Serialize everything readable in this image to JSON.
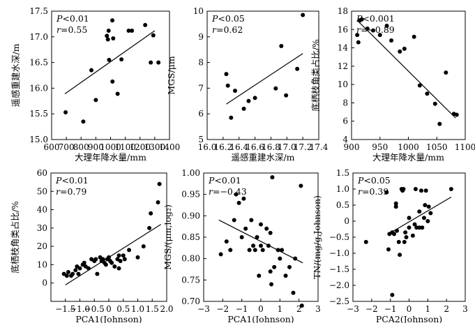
{
  "chart_data": [
    {
      "type": "scatter",
      "panel": "top-left",
      "xlabel": "大理年降水量/mm",
      "ylabel": "遥感重建水深/m",
      "xlim": [
        600,
        1400
      ],
      "ylim": [
        15.0,
        17.5
      ],
      "xticks": [
        600,
        700,
        800,
        900,
        1000,
        1100,
        1200,
        1300,
        1400
      ],
      "xtick_labels": [
        "600",
        "700",
        "800",
        "900",
        "1000",
        "1100",
        "1200",
        "1300",
        "1400"
      ],
      "yticks": [
        15.0,
        15.5,
        16.0,
        16.5,
        17.0,
        17.5
      ],
      "ytick_labels": [
        "15.0",
        "15.5",
        "16.0",
        "16.5",
        "17.0",
        "17.5"
      ],
      "stats": [
        {
          "var": "P",
          "text": "<0.01"
        },
        {
          "var": "r",
          "text": "=0.55"
        }
      ],
      "points": [
        [
          695,
          15.53
        ],
        [
          815,
          15.35
        ],
        [
          870,
          16.35
        ],
        [
          900,
          15.77
        ],
        [
          975,
          17.02
        ],
        [
          982,
          16.95
        ],
        [
          987,
          17.12
        ],
        [
          990,
          16.55
        ],
        [
          1012,
          17.32
        ],
        [
          1013,
          16.13
        ],
        [
          1018,
          16.97
        ],
        [
          1048,
          15.89
        ],
        [
          1074,
          16.56
        ],
        [
          1123,
          17.12
        ],
        [
          1145,
          17.12
        ],
        [
          1235,
          17.23
        ],
        [
          1273,
          16.5
        ],
        [
          1290,
          17.03
        ],
        [
          1325,
          16.5
        ]
      ],
      "trendline": [
        [
          690,
          15.89
        ],
        [
          1300,
          17.12
        ]
      ]
    },
    {
      "type": "scatter",
      "panel": "top-middle",
      "xlabel": "遥感重建水深/m",
      "ylabel": "MGS/μm",
      "xlim": [
        16.0,
        17.4
      ],
      "ylim": [
        5,
        10
      ],
      "xticks": [
        16.0,
        16.2,
        16.4,
        16.6,
        16.8,
        17.0,
        17.2,
        17.4
      ],
      "xtick_labels": [
        "16.0",
        "16.2",
        "16.4",
        "16.6",
        "16.8",
        "17.0",
        "17.2",
        "17.4"
      ],
      "yticks": [
        5,
        6,
        7,
        8,
        9,
        10
      ],
      "ytick_labels": [
        "5",
        "6",
        "7",
        "8",
        "9",
        "10"
      ],
      "stats": [
        {
          "var": "P",
          "text": "<0.05"
        },
        {
          "var": "r",
          "text": "=0.62"
        }
      ],
      "points": [
        [
          16.24,
          7.55
        ],
        [
          16.26,
          7.1
        ],
        [
          16.3,
          5.85
        ],
        [
          16.35,
          6.9
        ],
        [
          16.46,
          6.2
        ],
        [
          16.52,
          6.5
        ],
        [
          16.6,
          6.62
        ],
        [
          16.86,
          6.99
        ],
        [
          16.93,
          8.64
        ],
        [
          16.99,
          6.72
        ],
        [
          17.13,
          7.75
        ],
        [
          17.2,
          9.85
        ]
      ],
      "trendline": [
        [
          16.24,
          6.38
        ],
        [
          17.2,
          8.35
        ]
      ]
    },
    {
      "type": "scatter",
      "panel": "top-right",
      "xlabel": "大理年降水量/mm",
      "ylabel": "底栖枝角类占比/%",
      "xlim": [
        900,
        1100
      ],
      "ylim": [
        4,
        18
      ],
      "xticks": [
        900,
        950,
        1000,
        1050,
        1100
      ],
      "xtick_labels": [
        "900",
        "950",
        "1000",
        "1050",
        "1100"
      ],
      "yticks": [
        4,
        6,
        8,
        10,
        12,
        14,
        16,
        18
      ],
      "ytick_labels": [
        "4",
        "6",
        "8",
        "10",
        "12",
        "14",
        "16",
        "18"
      ],
      "stats": [
        {
          "var": "P",
          "text": "<0.001"
        },
        {
          "var": "r",
          "text": "=−0.89"
        }
      ],
      "points": [
        [
          910,
          15.4
        ],
        [
          912,
          14.6
        ],
        [
          915,
          17.0
        ],
        [
          918,
          17.1
        ],
        [
          928,
          16.1
        ],
        [
          938,
          15.9
        ],
        [
          950,
          15.4
        ],
        [
          962,
          16.4
        ],
        [
          970,
          14.8
        ],
        [
          985,
          13.6
        ],
        [
          993,
          13.9
        ],
        [
          1010,
          15.2
        ],
        [
          1020,
          9.9
        ],
        [
          1033,
          9.0
        ],
        [
          1047,
          7.9
        ],
        [
          1055,
          5.7
        ],
        [
          1066,
          11.3
        ],
        [
          1080,
          6.8
        ],
        [
          1085,
          6.7
        ]
      ],
      "trendline": [
        [
          910,
          17.0
        ],
        [
          1083,
          6.35
        ]
      ]
    },
    {
      "type": "scatter",
      "panel": "bottom-left",
      "xlabel": "PCA1(Johnson)",
      "ylabel": "底栖枝角类占比/%",
      "xlim": [
        -2.0,
        2.0
      ],
      "ylim": [
        -10,
        60
      ],
      "xticks": [
        -1.5,
        -1.0,
        -0.5,
        0,
        0.5,
        1.0,
        1.5,
        2.0
      ],
      "xtick_labels": [
        "−1.5",
        "−1.0",
        "−0.5",
        "0",
        "0.5",
        "1.0",
        "1.5",
        "2.0"
      ],
      "yticks": [
        0,
        10,
        20,
        30,
        40,
        50,
        60
      ],
      "ytick_labels": [
        "0",
        "10",
        "20",
        "30",
        "40",
        "50",
        "60"
      ],
      "stats": [
        {
          "var": "P",
          "text": "<0.01"
        },
        {
          "var": "r",
          "text": "=0.79"
        }
      ],
      "points": [
        [
          -1.55,
          5
        ],
        [
          -1.45,
          4
        ],
        [
          -1.4,
          6
        ],
        [
          -1.3,
          4
        ],
        [
          -1.25,
          5
        ],
        [
          -1.15,
          7
        ],
        [
          -1.1,
          9
        ],
        [
          -1.05,
          5
        ],
        [
          -1.0,
          8
        ],
        [
          -0.9,
          10
        ],
        [
          -0.85,
          11
        ],
        [
          -0.8,
          9
        ],
        [
          -0.7,
          8
        ],
        [
          -0.6,
          13
        ],
        [
          -0.5,
          12
        ],
        [
          -0.45,
          13
        ],
        [
          -0.4,
          5
        ],
        [
          -0.3,
          14
        ],
        [
          -0.25,
          12
        ],
        [
          -0.2,
          13
        ],
        [
          -0.15,
          11
        ],
        [
          -0.1,
          10
        ],
        [
          -0.05,
          13
        ],
        [
          0.0,
          14
        ],
        [
          0.05,
          12
        ],
        [
          0.1,
          11
        ],
        [
          0.2,
          9
        ],
        [
          0.3,
          13
        ],
        [
          0.35,
          8
        ],
        [
          0.35,
          15
        ],
        [
          0.4,
          12
        ],
        [
          0.5,
          15
        ],
        [
          0.55,
          13
        ],
        [
          0.7,
          18
        ],
        [
          1.0,
          14
        ],
        [
          1.2,
          20
        ],
        [
          1.4,
          30
        ],
        [
          1.45,
          38
        ],
        [
          1.7,
          44
        ],
        [
          1.75,
          54
        ]
      ],
      "trendline": [
        [
          -1.5,
          -1.0
        ],
        [
          1.8,
          32.0
        ]
      ]
    },
    {
      "type": "scatter",
      "panel": "bottom-middle",
      "xlabel": "PCA1(Johnson)",
      "ylabel": "MGS/(μm,log₂)",
      "xlim": [
        -3,
        3
      ],
      "ylim": [
        0.7,
        1.0
      ],
      "xticks": [
        -3,
        -2,
        -1,
        0,
        1,
        2,
        3
      ],
      "xtick_labels": [
        "−3",
        "−2",
        "−1",
        "0",
        "1",
        "2",
        "3"
      ],
      "yticks": [
        0.7,
        0.75,
        0.8,
        0.85,
        0.9,
        0.95,
        1.0
      ],
      "ytick_labels": [
        "0.70",
        "0.75",
        "0.80",
        "0.85",
        "0.90",
        "0.95",
        "1.00"
      ],
      "stats": [
        {
          "var": "P",
          "text": "<0.01"
        },
        {
          "var": "r",
          "text": "=−0.43"
        }
      ],
      "points": [
        [
          -2.1,
          0.81
        ],
        [
          -1.8,
          0.84
        ],
        [
          -1.6,
          0.82
        ],
        [
          -1.4,
          0.89
        ],
        [
          -1.3,
          0.95
        ],
        [
          -1.15,
          0.93
        ],
        [
          -1.0,
          0.85
        ],
        [
          -0.9,
          0.94
        ],
        [
          -0.8,
          0.87
        ],
        [
          -0.6,
          0.82
        ],
        [
          -0.5,
          0.89
        ],
        [
          -0.4,
          0.83
        ],
        [
          -0.3,
          0.82
        ],
        [
          -0.2,
          0.85
        ],
        [
          -0.1,
          0.76
        ],
        [
          0.0,
          0.88
        ],
        [
          0.0,
          0.83
        ],
        [
          0.1,
          0.82
        ],
        [
          0.3,
          0.87
        ],
        [
          0.4,
          0.83
        ],
        [
          0.5,
          0.77
        ],
        [
          0.5,
          0.86
        ],
        [
          0.55,
          0.74
        ],
        [
          0.6,
          0.99
        ],
        [
          0.7,
          0.78
        ],
        [
          0.9,
          0.82
        ],
        [
          1.0,
          0.8
        ],
        [
          1.1,
          0.82
        ],
        [
          1.3,
          0.76
        ],
        [
          1.5,
          0.78
        ],
        [
          1.7,
          0.72
        ],
        [
          1.8,
          0.8
        ],
        [
          2.1,
          0.97
        ],
        [
          2.15,
          0.69
        ]
      ],
      "trendline": [
        [
          -2.2,
          0.89
        ],
        [
          2.2,
          0.79
        ]
      ]
    },
    {
      "type": "scatter",
      "panel": "bottom-right",
      "xlabel": "PCA2(Johnson)",
      "ylabel": "TN/(mg/g,Johnson)",
      "xlim": [
        -3,
        3
      ],
      "ylim": [
        -2.5,
        1.5
      ],
      "xticks": [
        -3,
        -2,
        -1,
        0,
        1,
        2,
        3
      ],
      "xtick_labels": [
        "−3",
        "−2",
        "−1",
        "0",
        "1",
        "2",
        "3"
      ],
      "yticks": [
        -2.5,
        -2.0,
        -1.5,
        -1.0,
        -0.5,
        0,
        0.5,
        1.0,
        1.5
      ],
      "ytick_labels": [
        "−2.5",
        "−2.0",
        "−1.5",
        "−1.0",
        "−0.5",
        "0",
        "0.5",
        "1.0",
        "1.5"
      ],
      "stats": [
        {
          "var": "P",
          "text": "<0.05"
        },
        {
          "var": "r",
          "text": "=0.39"
        }
      ],
      "points": [
        [
          -2.3,
          -0.65
        ],
        [
          -1.2,
          0.9
        ],
        [
          -1.1,
          -0.88
        ],
        [
          -1.05,
          -0.4
        ],
        [
          -0.9,
          -0.35
        ],
        [
          -0.8,
          -0.4
        ],
        [
          -0.7,
          0.55
        ],
        [
          -0.7,
          0.45
        ],
        [
          -0.65,
          -0.3
        ],
        [
          -0.55,
          -0.65
        ],
        [
          -0.5,
          -1.05
        ],
        [
          -0.4,
          1.0
        ],
        [
          -0.35,
          0.95
        ],
        [
          -0.3,
          1.0
        ],
        [
          -0.25,
          -0.65
        ],
        [
          -0.2,
          -0.35
        ],
        [
          -0.15,
          -0.5
        ],
        [
          0.0,
          0.1
        ],
        [
          0.0,
          -0.2
        ],
        [
          0.2,
          -0.45
        ],
        [
          0.3,
          -0.1
        ],
        [
          0.35,
          1.0
        ],
        [
          0.4,
          -0.2
        ],
        [
          0.55,
          -0.2
        ],
        [
          0.55,
          0.3
        ],
        [
          0.65,
          0.95
        ],
        [
          0.7,
          -0.2
        ],
        [
          0.8,
          0.1
        ],
        [
          0.85,
          0.5
        ],
        [
          0.9,
          0.95
        ],
        [
          1.0,
          0.0
        ],
        [
          1.05,
          0.45
        ],
        [
          1.15,
          0.25
        ],
        [
          2.25,
          1.0
        ],
        [
          -0.9,
          -2.3
        ]
      ],
      "trendline": [
        [
          -1.1,
          -0.4
        ],
        [
          2.25,
          0.75
        ]
      ]
    }
  ]
}
